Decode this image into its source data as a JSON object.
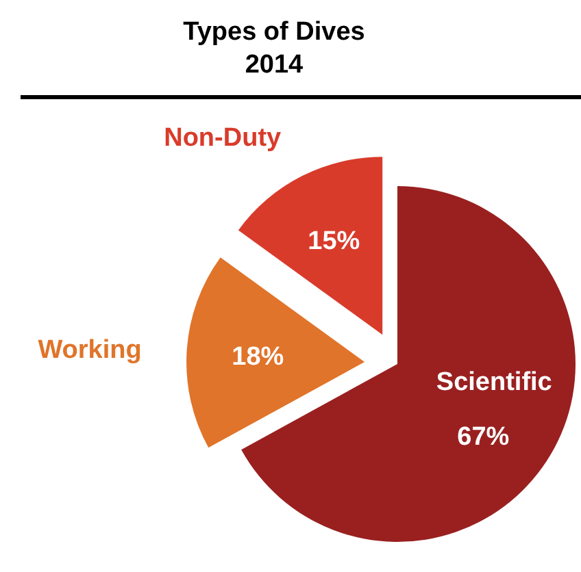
{
  "chart_data": {
    "type": "pie",
    "title": "Types of Dives",
    "subtitle": "2014",
    "categories": [
      "Scientific",
      "Working",
      "Non-Duty"
    ],
    "values": [
      67,
      18,
      15
    ],
    "colors": [
      "#9a2020",
      "#e0742a",
      "#d93b2b"
    ],
    "value_labels": [
      "67%",
      "18%",
      "15%"
    ]
  }
}
